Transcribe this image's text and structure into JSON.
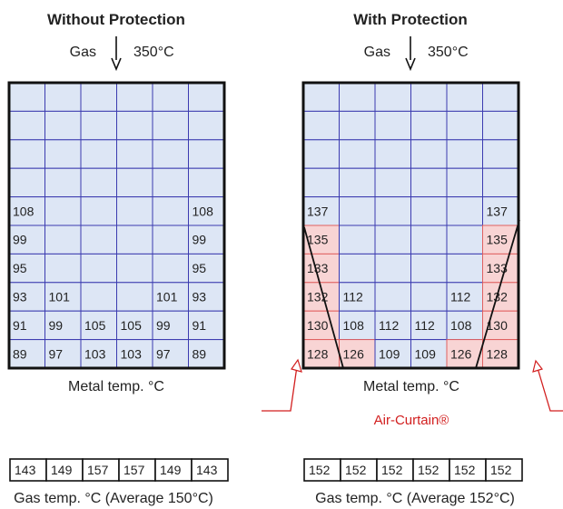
{
  "panels": [
    {
      "title": "Without Protection",
      "gas_label": "Gas",
      "gas_temp": "350°C",
      "rows": [
        [
          "",
          "",
          "",
          "",
          "",
          ""
        ],
        [
          "",
          "",
          "",
          "",
          "",
          ""
        ],
        [
          "",
          "",
          "",
          "",
          "",
          ""
        ],
        [
          "",
          "",
          "",
          "",
          "",
          ""
        ],
        [
          "108",
          "",
          "",
          "",
          "",
          "108"
        ],
        [
          "99",
          "",
          "",
          "",
          "",
          "99"
        ],
        [
          "95",
          "",
          "",
          "",
          "",
          "95"
        ],
        [
          "93",
          "101",
          "",
          "",
          "101",
          "93"
        ],
        [
          "91",
          "99",
          "105",
          "105",
          "99",
          "91"
        ],
        [
          "89",
          "97",
          "103",
          "103",
          "97",
          "89"
        ]
      ],
      "pink_cells": [],
      "metal_label": "Metal temp. °C",
      "gas_temps": [
        "143",
        "149",
        "157",
        "157",
        "149",
        "143"
      ],
      "gas_caption": "Gas temp. °C (Average 150°C)"
    },
    {
      "title": "With Protection",
      "gas_label": "Gas",
      "gas_temp": "350°C",
      "rows": [
        [
          "",
          "",
          "",
          "",
          "",
          ""
        ],
        [
          "",
          "",
          "",
          "",
          "",
          ""
        ],
        [
          "",
          "",
          "",
          "",
          "",
          ""
        ],
        [
          "",
          "",
          "",
          "",
          "",
          ""
        ],
        [
          "137",
          "",
          "",
          "",
          "",
          "137"
        ],
        [
          "135",
          "",
          "",
          "",
          "",
          "135"
        ],
        [
          "133",
          "",
          "",
          "",
          "",
          "133"
        ],
        [
          "132",
          "112",
          "",
          "",
          "112",
          "132"
        ],
        [
          "130",
          "108",
          "112",
          "112",
          "108",
          "130"
        ],
        [
          "128",
          "126",
          "109",
          "109",
          "126",
          "128"
        ]
      ],
      "pink_cells": [
        [
          5,
          0
        ],
        [
          6,
          0
        ],
        [
          7,
          0
        ],
        [
          8,
          0
        ],
        [
          9,
          0
        ],
        [
          9,
          1
        ],
        [
          5,
          5
        ],
        [
          6,
          5
        ],
        [
          7,
          5
        ],
        [
          8,
          5
        ],
        [
          9,
          5
        ],
        [
          9,
          4
        ]
      ],
      "metal_label": "Metal temp. °C",
      "air_curtain_label": "Air-Curtain®",
      "gas_temps": [
        "152",
        "152",
        "152",
        "152",
        "152",
        "152"
      ],
      "gas_caption": "Gas temp. °C (Average 152°C)"
    }
  ],
  "colors": {
    "cell_fill": "#dde6f5",
    "grid_line": "#3b3bb0",
    "pink_fill": "#f8d4d4",
    "pink_line": "#e06060",
    "outline": "#111111",
    "accent_red": "#d21f1f"
  }
}
